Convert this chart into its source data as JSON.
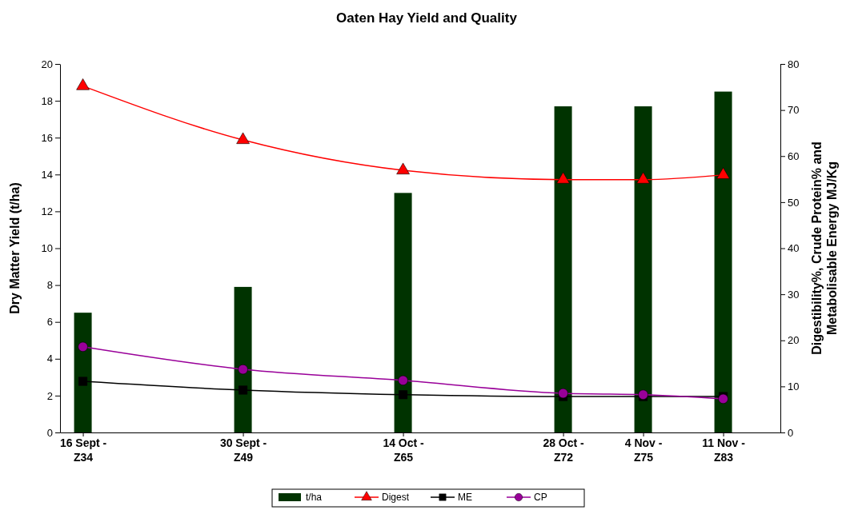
{
  "chart_data": {
    "type": "bar",
    "title": "Oaten Hay Yield and Quality",
    "ylabel": "Dry Matter Yield (t/ha)",
    "y2label": "Digestibility%, Crude Protein% and Metabolisable Energy MJ/Kg",
    "x": [
      "--09-16",
      "--09-30",
      "--10-14",
      "--10-28",
      "--11-04",
      "--11-11"
    ],
    "xlim": [
      "--09-14",
      "--11-16"
    ],
    "xticks": [
      {
        "value": "--09-16",
        "label": "16 Sept - Z34"
      },
      {
        "value": "--09-30",
        "label": "30 Sept - Z49"
      },
      {
        "value": "--10-14",
        "label": "14 Oct - Z65"
      },
      {
        "value": "--10-28",
        "label": "28 Oct - Z72"
      },
      {
        "value": "--11-04",
        "label": "4 Nov - Z75"
      },
      {
        "value": "--11-11",
        "label": "11 Nov - Z83"
      }
    ],
    "ylim": [
      0,
      20
    ],
    "yticks": [
      0,
      2,
      4,
      6,
      8,
      10,
      12,
      14,
      16,
      18,
      20
    ],
    "y2lim": [
      0,
      80
    ],
    "y2ticks": [
      0,
      10,
      20,
      30,
      40,
      50,
      60,
      70,
      80
    ],
    "legend": "bottom",
    "grid": false,
    "series": [
      {
        "name": "t/ha",
        "color": "#003300",
        "values": [
          6.5,
          7.9,
          13,
          17.7,
          17.7,
          18.5
        ]
      },
      {
        "name": "Digest",
        "type": "line",
        "axis": "y2",
        "marker": "triangle",
        "color": "#ff0000",
        "values": [
          75.2,
          63.5,
          56.9,
          54.9,
          54.9,
          55.9
        ]
      },
      {
        "name": "ME",
        "type": "line",
        "axis": "y2",
        "marker": "square",
        "color": "#000000",
        "values": [
          11.1,
          9.2,
          8.2,
          7.8,
          7.8,
          7.8
        ]
      },
      {
        "name": "CP",
        "type": "line",
        "axis": "y2",
        "marker": "circle",
        "color": "#990099",
        "values": [
          18.6,
          13.7,
          11.3,
          8.5,
          8.2,
          7.3
        ]
      }
    ]
  }
}
